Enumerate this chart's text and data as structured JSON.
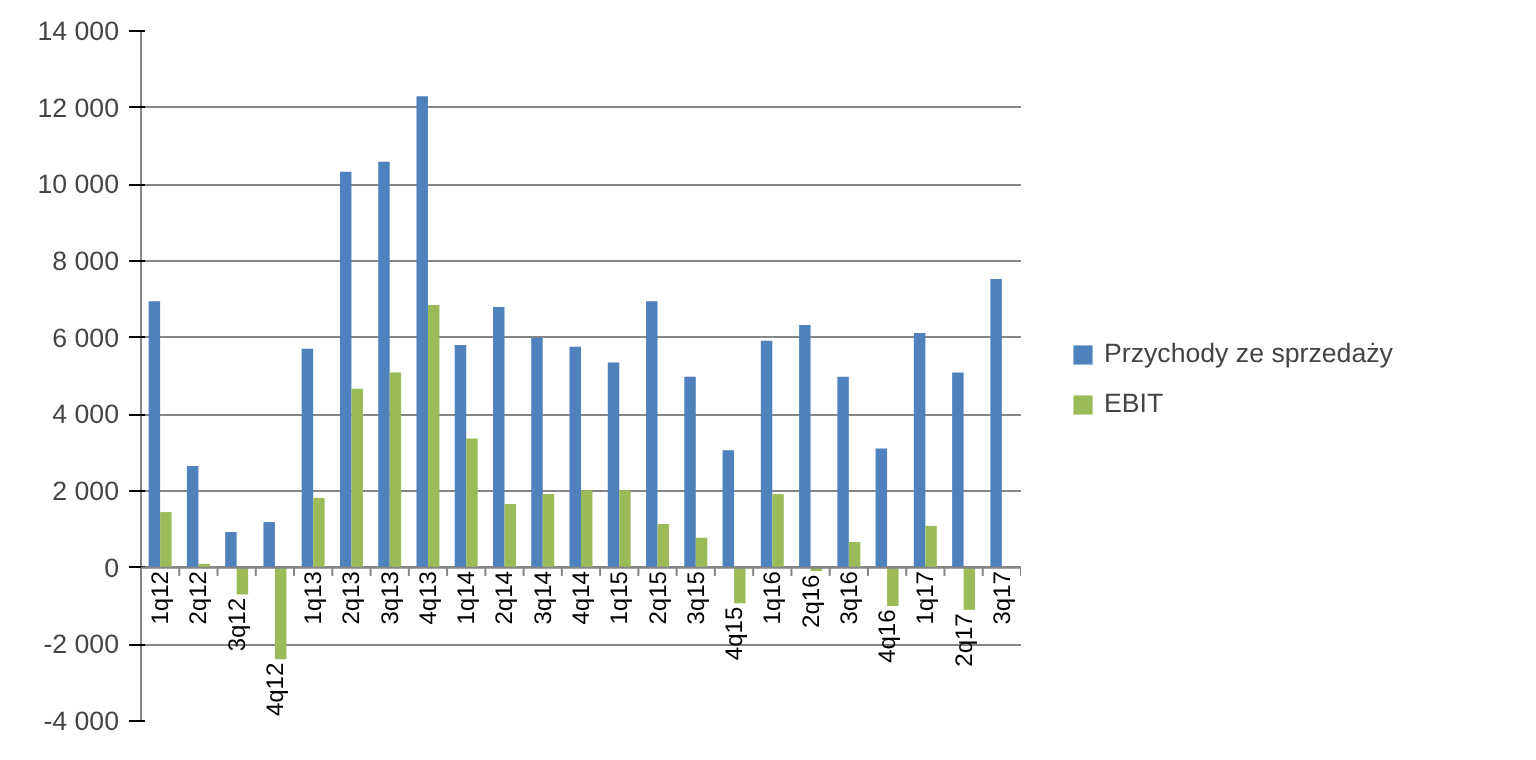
{
  "chart_data": {
    "type": "bar",
    "categories": [
      "1q12",
      "2q12",
      "3q12",
      "4q12",
      "1q13",
      "2q13",
      "3q13",
      "4q13",
      "1q14",
      "2q14",
      "3q14",
      "4q14",
      "1q15",
      "2q15",
      "3q15",
      "4q15",
      "1q16",
      "2q16",
      "3q16",
      "4q16",
      "1q17",
      "2q17",
      "3q17"
    ],
    "series": [
      {
        "name": "Przychody ze sprzedaży",
        "color": "#4f81bd",
        "values": [
          6950,
          2650,
          930,
          1190,
          5710,
          10330,
          10590,
          12300,
          5810,
          6800,
          6000,
          5760,
          5350,
          6950,
          4980,
          3060,
          5920,
          6330,
          4980,
          3110,
          6120,
          5090,
          7530
        ]
      },
      {
        "name": "EBIT",
        "color": "#9bbb59",
        "values": [
          1450,
          100,
          -700,
          -2390,
          1820,
          4670,
          5090,
          6850,
          3370,
          1660,
          1920,
          2020,
          2020,
          1140,
          780,
          -930,
          1920,
          -90,
          670,
          -1000,
          1090,
          -1100,
          null
        ]
      }
    ],
    "ylim": [
      -4000,
      14000
    ],
    "yticks": [
      {
        "value": -4000,
        "label": "-4 000"
      },
      {
        "value": -2000,
        "label": "-2 000"
      },
      0,
      {
        "value": 2000,
        "label": "2 000"
      },
      {
        "value": 4000,
        "label": "4 000"
      },
      {
        "value": 6000,
        "label": "6 000"
      },
      {
        "value": 8000,
        "label": "8 000"
      },
      {
        "value": 10000,
        "label": "10 000"
      },
      {
        "value": 12000,
        "label": "12 000"
      },
      {
        "value": 14000,
        "label": "14 000"
      }
    ],
    "grid": "y",
    "legend": "right"
  }
}
